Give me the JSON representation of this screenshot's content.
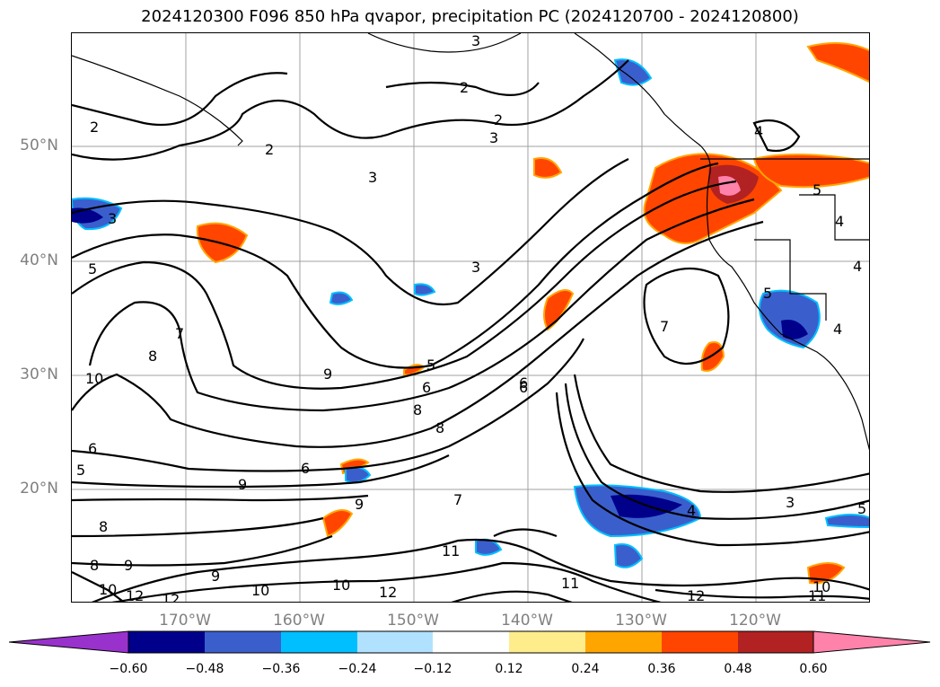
{
  "title": "2024120300 F096 850 hPa qvapor, precipitation PC (2024120700 - 2024120800)",
  "lat_labels": [
    "50°N",
    "40°N",
    "30°N",
    "20°N"
  ],
  "lon_labels": [
    "170°W",
    "160°W",
    "150°W",
    "140°W",
    "130°W",
    "120°W"
  ],
  "colorbar": {
    "ticks": [
      "−0.60",
      "−0.48",
      "−0.36",
      "−0.24",
      "−0.12",
      "0.12",
      "0.24",
      "0.36",
      "0.48",
      "0.60"
    ],
    "colors": [
      "#9932cc",
      "#00008b",
      "#3a5fcd",
      "#00bfff",
      "#b0e2ff",
      "#ffffff",
      "#ffec8b",
      "#ffa500",
      "#ff4500",
      "#b22222",
      "#ff82ab"
    ]
  },
  "contour_labels": [
    "3",
    "2",
    "2",
    "3",
    "3",
    "2",
    "2",
    "3",
    "5",
    "3",
    "7",
    "8",
    "10",
    "6",
    "5",
    "9",
    "9",
    "8",
    "8",
    "6",
    "8",
    "7",
    "9",
    "8",
    "6",
    "5",
    "6",
    "9",
    "11",
    "12",
    "10",
    "9",
    "10",
    "12",
    "11",
    "12",
    "7",
    "3",
    "4",
    "5",
    "5",
    "4",
    "4",
    "5",
    "4",
    "4",
    "6",
    "11",
    "10",
    "10",
    "12"
  ]
}
